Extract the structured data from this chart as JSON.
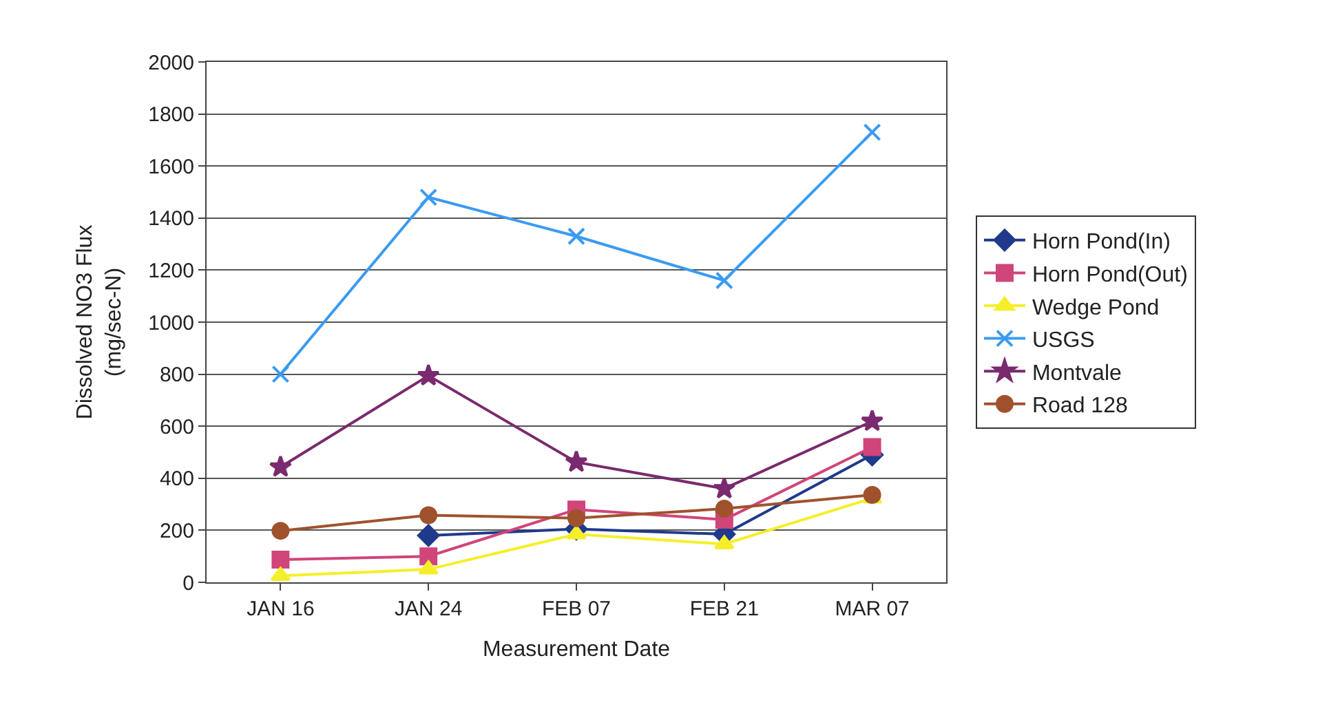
{
  "chart_data": {
    "type": "line",
    "xlabel": "Measurement Date",
    "ylabel": "Dissolved NO3 Flux\n(mg/sec-N)",
    "categories": [
      "JAN 16",
      "JAN 24",
      "FEB 07",
      "FEB 21",
      "MAR 07"
    ],
    "series": [
      {
        "name": "Horn Pond(In)",
        "color": "#1f3a8a",
        "marker": "diamond",
        "values": [
          null,
          180,
          205,
          185,
          490
        ]
      },
      {
        "name": "Horn Pond(Out)",
        "color": "#d0457a",
        "marker": "square",
        "values": [
          87,
          100,
          280,
          241,
          520
        ]
      },
      {
        "name": "Wedge Pond",
        "color": "#f5ef2a",
        "marker": "triangle",
        "values": [
          25,
          50,
          185,
          147,
          323
        ]
      },
      {
        "name": "USGS",
        "color": "#3a9bf0",
        "marker": "cross",
        "values": [
          800,
          1480,
          1330,
          1160,
          1730
        ]
      },
      {
        "name": "Montvale",
        "color": "#7a2a6e",
        "marker": "star",
        "values": [
          443,
          794,
          462,
          360,
          619
        ]
      },
      {
        "name": "Road 128",
        "color": "#a0522d",
        "marker": "circle",
        "values": [
          198,
          258,
          247,
          283,
          336
        ]
      }
    ],
    "ylim": [
      0,
      2000
    ],
    "yticks": [
      0,
      200,
      400,
      600,
      800,
      1000,
      1200,
      1400,
      1600,
      1800,
      2000
    ],
    "grid": "y",
    "legend": "right",
    "line_style": "solid"
  }
}
